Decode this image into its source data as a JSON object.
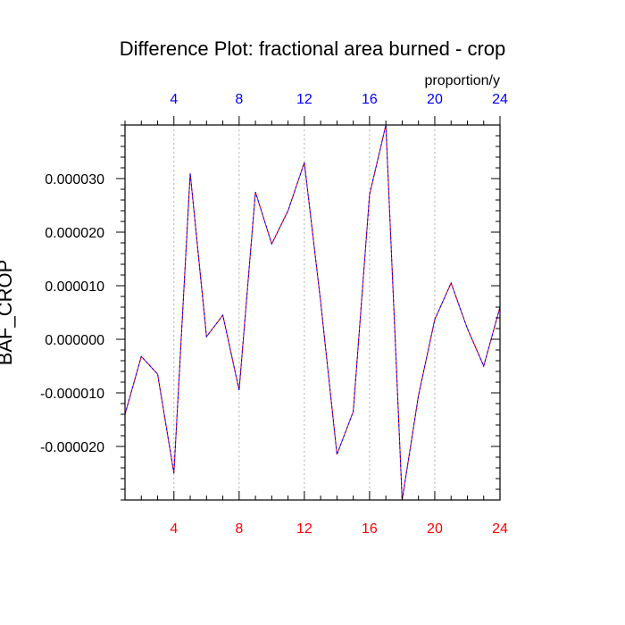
{
  "chart_data": {
    "type": "line",
    "title": "Difference Plot: fractional area burned - crop",
    "ylabel": "BAF_CROP",
    "top_axis_units": "proportion/y",
    "xlim": [
      1,
      24
    ],
    "ylim": [
      -3e-05,
      4e-05
    ],
    "x_ticks": [
      4,
      8,
      12,
      16,
      20,
      24
    ],
    "x_tick_labels": [
      "4",
      "8",
      "12",
      "16",
      "20",
      "24"
    ],
    "y_ticks": [
      -2e-05,
      -1e-05,
      0,
      1e-05,
      2e-05,
      3e-05
    ],
    "y_tick_labels": [
      "-0.000020",
      "-0.000010",
      "0.000000",
      "0.000010",
      "0.000020",
      "0.000030"
    ],
    "grid": "vertical dotted at major x ticks",
    "colors": {
      "line_a": "#ff0000",
      "line_b": "#0000ff",
      "bottom_tick_labels": "#ff0000",
      "top_tick_labels": "#0000ff"
    },
    "x": [
      1,
      2,
      3,
      4,
      5,
      6,
      7,
      8,
      9,
      10,
      11,
      12,
      13,
      14,
      15,
      16,
      17,
      18,
      19,
      20,
      21,
      22,
      23,
      24
    ],
    "series": [
      {
        "values": [
          -1.4e-05,
          -3.2e-06,
          -6.5e-06,
          -2.5e-05,
          3.1e-05,
          5e-07,
          4.5e-06,
          -9.5e-06,
          2.75e-05,
          1.78e-05,
          2.4e-05,
          3.3e-05,
          7e-06,
          -2.15e-05,
          -1.35e-05,
          2.7e-05,
          4e-05,
          -3e-05,
          -1.05e-05,
          3.7e-06,
          1.05e-05,
          2e-06,
          -5e-06,
          6e-06
        ]
      }
    ]
  }
}
